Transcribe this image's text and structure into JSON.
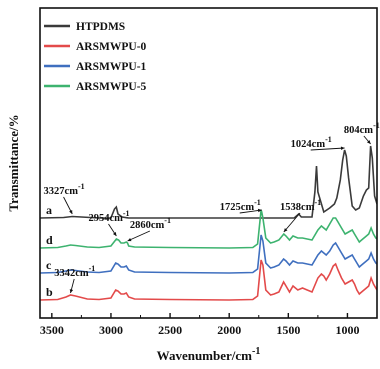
{
  "chart_data": {
    "type": "line",
    "title": "",
    "xlabel": "Wavenumber/cm",
    "xlabel_superscript": "-1",
    "ylabel": "Transmittance/%",
    "xlim": [
      3600,
      750
    ],
    "x_reversed": true,
    "x_ticks": [
      3500,
      3000,
      2500,
      2000,
      1500,
      1000
    ],
    "y_tick_labels": false,
    "legend_position": "top-left",
    "series": [
      {
        "name": "HTPDMS",
        "letter": "a",
        "color": "#3a3a3a",
        "offset": 82,
        "points": [
          [
            3600,
            0
          ],
          [
            3400,
            0.5
          ],
          [
            3327,
            1.5
          ],
          [
            3250,
            1
          ],
          [
            3100,
            0
          ],
          [
            3000,
            0
          ],
          [
            2970,
            9
          ],
          [
            2955,
            11
          ],
          [
            2940,
            4
          ],
          [
            2905,
            1
          ],
          [
            2850,
            0
          ],
          [
            2500,
            0
          ],
          [
            2000,
            0
          ],
          [
            1700,
            0
          ],
          [
            1450,
            0
          ],
          [
            1412,
            4
          ],
          [
            1390,
            1
          ],
          [
            1300,
            1
          ],
          [
            1275,
            26
          ],
          [
            1262,
            52
          ],
          [
            1250,
            26
          ],
          [
            1200,
            6
          ],
          [
            1150,
            10
          ],
          [
            1110,
            14
          ],
          [
            1090,
            20
          ],
          [
            1060,
            38
          ],
          [
            1040,
            58
          ],
          [
            1024,
            68
          ],
          [
            1010,
            62
          ],
          [
            990,
            40
          ],
          [
            960,
            12
          ],
          [
            930,
            8
          ],
          [
            900,
            10
          ],
          [
            865,
            22
          ],
          [
            840,
            28
          ],
          [
            820,
            30
          ],
          [
            804,
            72
          ],
          [
            790,
            60
          ],
          [
            770,
            22
          ],
          [
            750,
            14
          ]
        ]
      },
      {
        "name": "ARSMWPU-0",
        "letter": "b",
        "color": "#e34a4a",
        "offset": 0,
        "points": [
          [
            3600,
            0
          ],
          [
            3450,
            0.5
          ],
          [
            3380,
            3
          ],
          [
            3342,
            5
          ],
          [
            3300,
            4
          ],
          [
            3200,
            1
          ],
          [
            3100,
            0.5
          ],
          [
            3000,
            2
          ],
          [
            2960,
            10
          ],
          [
            2940,
            9
          ],
          [
            2915,
            6
          ],
          [
            2890,
            6
          ],
          [
            2870,
            7
          ],
          [
            2850,
            3
          ],
          [
            2800,
            1
          ],
          [
            2500,
            0.5
          ],
          [
            2000,
            0
          ],
          [
            1800,
            0.5
          ],
          [
            1760,
            4
          ],
          [
            1730,
            40
          ],
          [
            1715,
            35
          ],
          [
            1690,
            10
          ],
          [
            1650,
            5
          ],
          [
            1620,
            6
          ],
          [
            1580,
            8
          ],
          [
            1540,
            18
          ],
          [
            1520,
            14
          ],
          [
            1490,
            8
          ],
          [
            1460,
            14
          ],
          [
            1420,
            10
          ],
          [
            1380,
            12
          ],
          [
            1340,
            10
          ],
          [
            1300,
            8
          ],
          [
            1250,
            22
          ],
          [
            1220,
            26
          ],
          [
            1200,
            24
          ],
          [
            1180,
            20
          ],
          [
            1150,
            26
          ],
          [
            1120,
            34
          ],
          [
            1100,
            36
          ],
          [
            1080,
            30
          ],
          [
            1050,
            22
          ],
          [
            1020,
            16
          ],
          [
            990,
            18
          ],
          [
            960,
            20
          ],
          [
            940,
            16
          ],
          [
            920,
            10
          ],
          [
            900,
            6
          ],
          [
            880,
            8
          ],
          [
            860,
            10
          ],
          [
            840,
            12
          ],
          [
            820,
            14
          ],
          [
            800,
            22
          ],
          [
            780,
            16
          ],
          [
            760,
            12
          ],
          [
            750,
            10
          ]
        ]
      },
      {
        "name": "ARSMWPU-1",
        "letter": "c",
        "color": "#3f6fbf",
        "offset": 27,
        "points": [
          [
            3600,
            0
          ],
          [
            3450,
            0.5
          ],
          [
            3380,
            2
          ],
          [
            3342,
            3
          ],
          [
            3300,
            2.5
          ],
          [
            3200,
            1
          ],
          [
            3100,
            0.5
          ],
          [
            3000,
            2
          ],
          [
            2960,
            10
          ],
          [
            2940,
            9
          ],
          [
            2915,
            6
          ],
          [
            2890,
            6
          ],
          [
            2870,
            7
          ],
          [
            2850,
            3
          ],
          [
            2800,
            1
          ],
          [
            2500,
            0.5
          ],
          [
            2000,
            0
          ],
          [
            1800,
            0.5
          ],
          [
            1760,
            4
          ],
          [
            1730,
            38
          ],
          [
            1715,
            32
          ],
          [
            1690,
            10
          ],
          [
            1650,
            5
          ],
          [
            1620,
            6
          ],
          [
            1580,
            8
          ],
          [
            1540,
            14
          ],
          [
            1520,
            12
          ],
          [
            1490,
            8
          ],
          [
            1460,
            12
          ],
          [
            1420,
            10
          ],
          [
            1380,
            10
          ],
          [
            1340,
            9
          ],
          [
            1300,
            8
          ],
          [
            1250,
            18
          ],
          [
            1220,
            22
          ],
          [
            1200,
            20
          ],
          [
            1180,
            18
          ],
          [
            1150,
            22
          ],
          [
            1120,
            28
          ],
          [
            1100,
            30
          ],
          [
            1080,
            26
          ],
          [
            1050,
            20
          ],
          [
            1020,
            14
          ],
          [
            990,
            16
          ],
          [
            960,
            18
          ],
          [
            940,
            14
          ],
          [
            920,
            10
          ],
          [
            900,
            6
          ],
          [
            880,
            8
          ],
          [
            860,
            10
          ],
          [
            840,
            12
          ],
          [
            820,
            14
          ],
          [
            800,
            20
          ],
          [
            780,
            14
          ],
          [
            760,
            10
          ],
          [
            750,
            9
          ]
        ]
      },
      {
        "name": "ARSMWPU-5",
        "letter": "d",
        "color": "#3db36f",
        "offset": 52,
        "points": [
          [
            3600,
            0
          ],
          [
            3450,
            0.5
          ],
          [
            3380,
            2
          ],
          [
            3342,
            3
          ],
          [
            3300,
            2.5
          ],
          [
            3200,
            1
          ],
          [
            3100,
            0.5
          ],
          [
            3000,
            2
          ],
          [
            2954,
            9
          ],
          [
            2935,
            8
          ],
          [
            2915,
            5
          ],
          [
            2890,
            5
          ],
          [
            2870,
            6
          ],
          [
            2860,
            5
          ],
          [
            2850,
            2
          ],
          [
            2800,
            1
          ],
          [
            2500,
            0.5
          ],
          [
            2000,
            0
          ],
          [
            1800,
            0.5
          ],
          [
            1760,
            4
          ],
          [
            1730,
            38
          ],
          [
            1725,
            36
          ],
          [
            1715,
            30
          ],
          [
            1690,
            10
          ],
          [
            1650,
            5
          ],
          [
            1620,
            6
          ],
          [
            1580,
            8
          ],
          [
            1538,
            14
          ],
          [
            1520,
            12
          ],
          [
            1490,
            8
          ],
          [
            1460,
            12
          ],
          [
            1420,
            10
          ],
          [
            1380,
            10
          ],
          [
            1340,
            9
          ],
          [
            1300,
            8
          ],
          [
            1250,
            18
          ],
          [
            1220,
            22
          ],
          [
            1200,
            20
          ],
          [
            1180,
            18
          ],
          [
            1150,
            24
          ],
          [
            1120,
            30
          ],
          [
            1100,
            30
          ],
          [
            1080,
            26
          ],
          [
            1050,
            20
          ],
          [
            1020,
            14
          ],
          [
            990,
            16
          ],
          [
            960,
            18
          ],
          [
            940,
            14
          ],
          [
            920,
            10
          ],
          [
            900,
            6
          ],
          [
            880,
            8
          ],
          [
            860,
            10
          ],
          [
            840,
            12
          ],
          [
            820,
            14
          ],
          [
            800,
            20
          ],
          [
            780,
            14
          ],
          [
            760,
            10
          ],
          [
            750,
            9
          ]
        ]
      }
    ],
    "annotations": [
      {
        "text": "3327cm",
        "sup": "-1",
        "x": 3327,
        "y": 84,
        "text_x": 3570,
        "text_y": 106
      },
      {
        "text": "1024cm",
        "sup": "-1",
        "x": 1024,
        "y": 150,
        "text_x": 1480,
        "text_y": 153
      },
      {
        "text": "804cm",
        "sup": "-1",
        "x": 804,
        "y": 154,
        "text_x": 1030,
        "text_y": 167
      },
      {
        "text": "2954cm",
        "sup": "-1",
        "x": 2954,
        "y": 62,
        "text_x": 3190,
        "text_y": 79
      },
      {
        "text": "2860cm",
        "sup": "-1",
        "x": 2860,
        "y": 57,
        "text_x": 2840,
        "text_y": 72
      },
      {
        "text": "1725cm",
        "sup": "-1",
        "x": 1725,
        "y": 88,
        "text_x": 2080,
        "text_y": 90
      },
      {
        "text": "1538cm",
        "sup": "-1",
        "x": 1538,
        "y": 66,
        "text_x": 1570,
        "text_y": 90
      },
      {
        "text": "3342cm",
        "sup": "-1",
        "x": 3342,
        "y": 5,
        "text_x": 3480,
        "text_y": 24
      }
    ]
  }
}
